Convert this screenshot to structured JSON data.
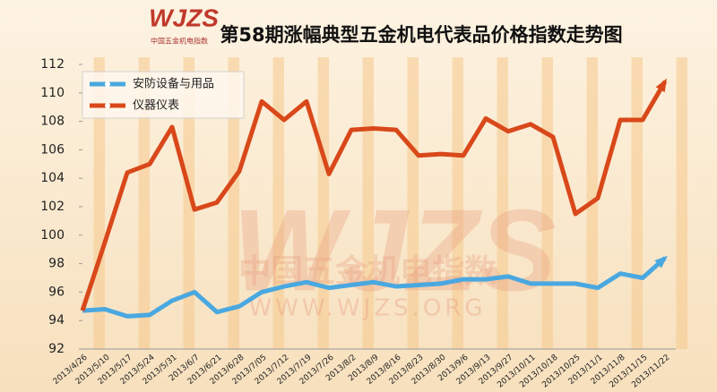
{
  "chart_data": {
    "type": "line",
    "title": "第58期涨幅典型五金机电代表品价格指数走势图",
    "categories": [
      "2013/4/26",
      "2013/5/10",
      "2013/5/17",
      "2013/5/24",
      "2013/5/31",
      "2013/6/7",
      "2013/6/21",
      "2013/6/28",
      "2013/7/05",
      "2013/7/12",
      "2013/7/19",
      "2013/7/26",
      "2013/8/2",
      "2013/8/9",
      "2013/8/16",
      "2013/8/23",
      "2013/8/30",
      "2013/9/6",
      "2013/9/13",
      "2013/9/27",
      "2013/10/11",
      "2013/10/18",
      "2013/10/25",
      "2013/11/1",
      "2013/11/8",
      "2013/11/15",
      "2013/11/22"
    ],
    "series": [
      {
        "name": "安防设备与用品",
        "color": "#4aa8e0",
        "values": [
          94.7,
          94.8,
          94.3,
          94.4,
          95.4,
          96.0,
          94.6,
          95.0,
          96.0,
          96.4,
          96.7,
          96.3,
          96.5,
          96.7,
          96.4,
          96.5,
          96.6,
          96.9,
          96.9,
          97.1,
          96.6,
          96.6,
          96.6,
          96.3,
          97.3,
          97.0,
          98.4
        ]
      },
      {
        "name": "仪器仪表",
        "color": "#d9481a",
        "values": [
          94.7,
          99.5,
          104.4,
          105.0,
          107.6,
          101.8,
          102.3,
          104.5,
          109.4,
          108.1,
          109.4,
          104.3,
          107.4,
          107.5,
          107.4,
          105.6,
          105.7,
          105.6,
          108.2,
          107.3,
          107.8,
          106.9,
          101.5,
          102.6,
          108.1,
          108.1,
          110.8
        ]
      }
    ],
    "ylim": [
      92,
      112
    ],
    "yticks": [
      92,
      94,
      96,
      98,
      100,
      102,
      104,
      106,
      108,
      110,
      112
    ],
    "grid": false,
    "legend": "top-left"
  },
  "logo": {
    "mark": "WJZS",
    "name": "中国五金机电指数",
    "site": "WWW.WJZS.ORG"
  }
}
